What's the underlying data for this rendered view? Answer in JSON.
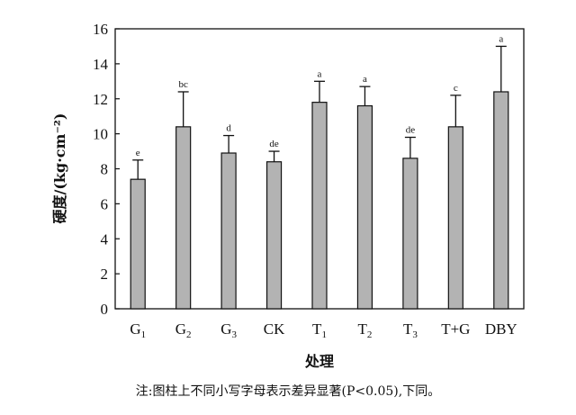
{
  "chart_data": {
    "type": "bar",
    "categories": [
      "G1",
      "G2",
      "G3",
      "CK",
      "T1",
      "T2",
      "T3",
      "T+G",
      "DBY"
    ],
    "category_labels": [
      {
        "main": "G",
        "sub": "1"
      },
      {
        "main": "G",
        "sub": "2"
      },
      {
        "main": "G",
        "sub": "3"
      },
      {
        "main": "CK",
        "sub": ""
      },
      {
        "main": "T",
        "sub": "1"
      },
      {
        "main": "T",
        "sub": "2"
      },
      {
        "main": "T",
        "sub": "3"
      },
      {
        "main": "T+G",
        "sub": ""
      },
      {
        "main": "DBY",
        "sub": ""
      }
    ],
    "values": [
      7.4,
      10.4,
      8.9,
      8.4,
      11.8,
      11.6,
      8.6,
      10.4,
      12.4
    ],
    "errors": [
      1.1,
      2.0,
      1.0,
      0.6,
      1.2,
      1.1,
      1.2,
      1.8,
      2.6
    ],
    "significance": [
      "e",
      "bc",
      "d",
      "de",
      "a",
      "a",
      "de",
      "c",
      "a"
    ],
    "ylabel": "硬度/(kg·cm⁻²)",
    "xlabel": "处理",
    "ylim": [
      0,
      16
    ],
    "yticks": [
      0,
      2,
      4,
      6,
      8,
      10,
      12,
      14,
      16
    ],
    "grid": false,
    "bar_color": "#b3b3b3"
  },
  "note": "注:图柱上不同小写字母表示差异显著(P<0.05),下同。"
}
